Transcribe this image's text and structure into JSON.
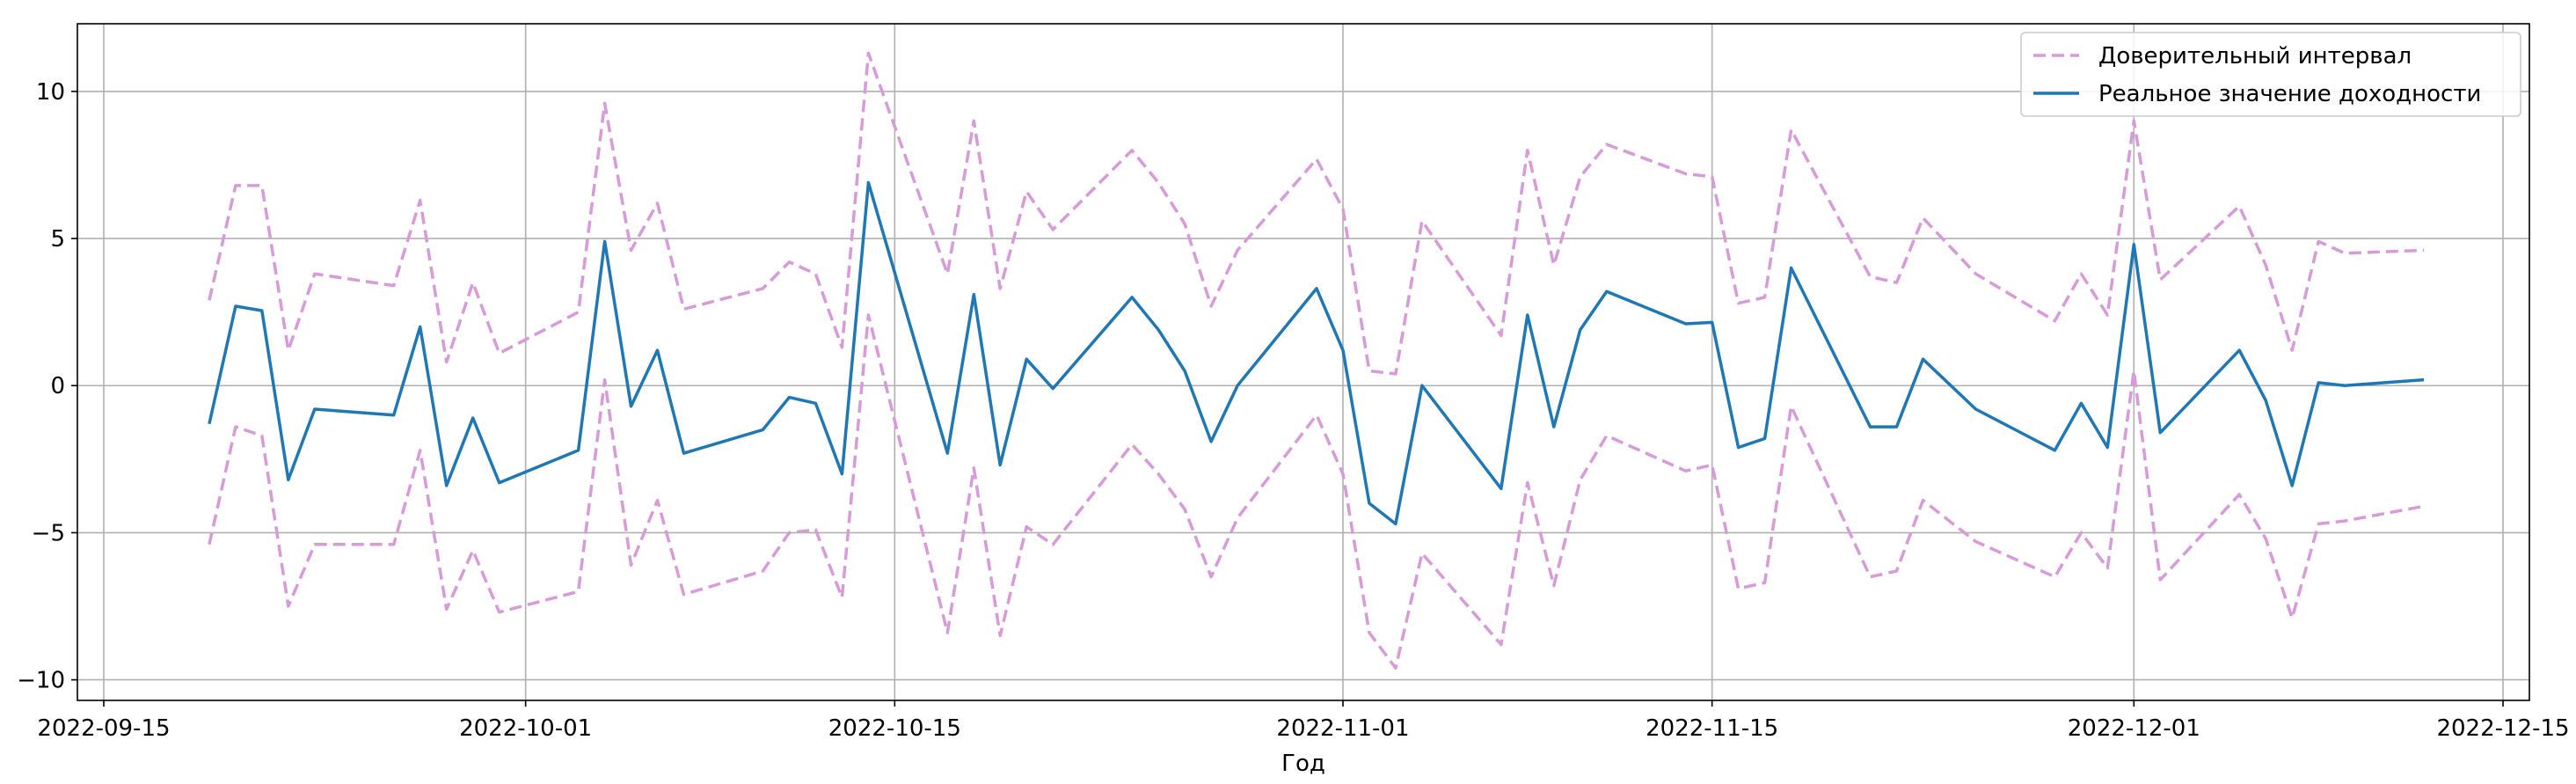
{
  "chart_data": {
    "type": "line",
    "title": "",
    "xlabel": "Год",
    "ylabel": "",
    "x_type": "date",
    "xlim": [
      "2022-09-14",
      "2022-12-16"
    ],
    "ylim": [
      -10.7,
      12.3
    ],
    "x_ticks": [
      "2022-09-15",
      "2022-10-01",
      "2022-10-15",
      "2022-11-01",
      "2022-11-15",
      "2022-12-01",
      "2022-12-15"
    ],
    "y_ticks": [
      -10,
      -5,
      0,
      5,
      10
    ],
    "grid": true,
    "legend_position": "top-right",
    "x": [
      "2022-09-19",
      "2022-09-20",
      "2022-09-21",
      "2022-09-22",
      "2022-09-23",
      "2022-09-26",
      "2022-09-27",
      "2022-09-28",
      "2022-09-29",
      "2022-09-30",
      "2022-10-03",
      "2022-10-04",
      "2022-10-05",
      "2022-10-06",
      "2022-10-07",
      "2022-10-10",
      "2022-10-11",
      "2022-10-12",
      "2022-10-13",
      "2022-10-14",
      "2022-10-17",
      "2022-10-18",
      "2022-10-19",
      "2022-10-20",
      "2022-10-21",
      "2022-10-24",
      "2022-10-25",
      "2022-10-26",
      "2022-10-27",
      "2022-10-28",
      "2022-10-31",
      "2022-11-01",
      "2022-11-02",
      "2022-11-03",
      "2022-11-04",
      "2022-11-07",
      "2022-11-08",
      "2022-11-09",
      "2022-11-10",
      "2022-11-11",
      "2022-11-14",
      "2022-11-15",
      "2022-11-16",
      "2022-11-17",
      "2022-11-18",
      "2022-11-21",
      "2022-11-22",
      "2022-11-23",
      "2022-11-25",
      "2022-11-28",
      "2022-11-29",
      "2022-11-30",
      "2022-12-01",
      "2022-12-02",
      "2022-12-05",
      "2022-12-06",
      "2022-12-07",
      "2022-12-08",
      "2022-12-09",
      "2022-12-12"
    ],
    "series": [
      {
        "name": "Доверительный интервал",
        "style": "dashed",
        "color": "#d89bd9",
        "upper": [
          2.9,
          6.8,
          6.8,
          1.2,
          3.8,
          3.4,
          6.3,
          0.8,
          3.5,
          1.1,
          2.5,
          9.6,
          4.6,
          6.2,
          2.6,
          3.3,
          4.2,
          3.8,
          1.3,
          11.3,
          3.8,
          9.0,
          3.3,
          6.6,
          5.3,
          8.0,
          6.9,
          5.5,
          2.7,
          4.6,
          7.7,
          6.0,
          0.5,
          0.4,
          5.6,
          1.7,
          8.0,
          4.1,
          7.1,
          8.2,
          7.2,
          7.1,
          2.8,
          3.0,
          8.7,
          3.7,
          3.5,
          5.7,
          3.8,
          2.2,
          3.8,
          2.4,
          9.0,
          3.6,
          6.1,
          4.1,
          1.2,
          4.9,
          4.5,
          4.6
        ],
        "lower": [
          -5.4,
          -1.4,
          -1.7,
          -7.5,
          -5.4,
          -5.4,
          -2.2,
          -7.6,
          -5.6,
          -7.7,
          -7.0,
          0.2,
          -6.1,
          -3.9,
          -7.1,
          -6.3,
          -5.0,
          -4.9,
          -7.2,
          2.4,
          -8.4,
          -2.8,
          -8.5,
          -4.8,
          -5.4,
          -2.0,
          -3.0,
          -4.2,
          -6.5,
          -4.5,
          -1.0,
          -3.0,
          -8.4,
          -9.6,
          -5.7,
          -8.8,
          -3.3,
          -6.8,
          -3.2,
          -1.7,
          -2.9,
          -2.7,
          -6.9,
          -6.7,
          -0.7,
          -6.5,
          -6.3,
          -3.9,
          -5.3,
          -6.5,
          -5.0,
          -6.2,
          0.5,
          -6.6,
          -3.7,
          -5.2,
          -7.9,
          -4.7,
          -4.6,
          -4.1
        ]
      },
      {
        "name": "Реальное значение доходности",
        "style": "solid",
        "color": "#1f77b4",
        "values": [
          -1.3,
          2.7,
          2.55,
          -3.2,
          -0.8,
          -1.0,
          2.0,
          -3.4,
          -1.1,
          -3.3,
          -2.2,
          4.9,
          -0.7,
          1.2,
          -2.3,
          -1.5,
          -0.4,
          -0.6,
          -3.0,
          6.9,
          -2.3,
          3.1,
          -2.7,
          0.9,
          -0.1,
          3.0,
          1.9,
          0.5,
          -1.9,
          0.0,
          3.3,
          1.2,
          -4.0,
          -4.7,
          0.0,
          -3.5,
          2.4,
          -1.4,
          1.9,
          3.2,
          2.1,
          2.15,
          -2.1,
          -1.8,
          4.0,
          -1.4,
          -1.4,
          0.9,
          -0.8,
          -2.2,
          -0.6,
          -2.1,
          4.8,
          -1.6,
          1.2,
          -0.5,
          -3.4,
          0.1,
          0.0,
          0.2
        ]
      }
    ]
  }
}
